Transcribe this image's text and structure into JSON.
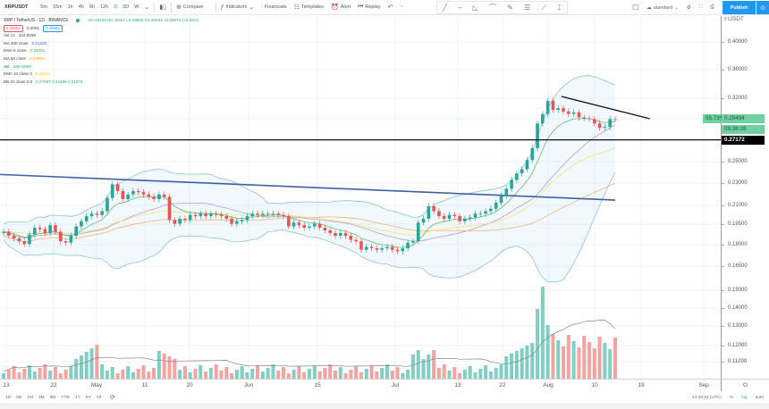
{
  "toolbar": {
    "symbol": "XRPUSDT",
    "timeframes": [
      "5m",
      "15m",
      "1h",
      "4h",
      "6h",
      "12h",
      "D",
      "3D",
      "W"
    ],
    "compare_label": "Compare",
    "indicators_label": "Indicators",
    "financials_label": "Financials",
    "templates_label": "Templates",
    "alert_label": "Alert",
    "replay_label": "Replay",
    "layout_label": "standard",
    "publish_label": "Publish"
  },
  "legend": {
    "title": "XRP / TetherUS · 1D · BINANCE",
    "ohlc": "O0.29420 H0.30347 L0.28910 C0.29494 +0.00074 (+0.25%)",
    "bid": "0.29493",
    "spread": "0.0001",
    "ask": "0.29494",
    "indicators": [
      {
        "name": "Vol 14",
        "value": "434.8298",
        "color": "#444444"
      },
      {
        "name": "MA 200 close",
        "value": "0.21420",
        "color": "#2962ff"
      },
      {
        "name": "EMA 8 close",
        "value": "0.29022",
        "color": "#4caf50"
      },
      {
        "name": "MA 50 close",
        "value": "0.22801",
        "color": "#ff9800"
      },
      {
        "name": "Vol",
        "value": "339.035M",
        "color": "#26a69a"
      },
      {
        "name": "EMA 34 close 0",
        "value": "0.25026",
        "color": "#f5d000"
      },
      {
        "name": "BB 20 close 2.0",
        "value": "0.27697  0.32458  0.21975",
        "color": "#26a69a"
      }
    ]
  },
  "price_axis": {
    "unit": "USDT",
    "ticks": [
      "0.40000",
      "0.36000",
      "0.32000",
      "0.25000",
      "0.23000",
      "0.21000",
      "0.19500",
      "0.18000",
      "0.16500",
      "0.15000",
      "0.14000",
      "0.13000",
      "0.12000",
      "0.11200"
    ],
    "current_price": "0.29494",
    "countdown": "09:36:28",
    "change_pct": "55.73%",
    "horizontal_line": "0.27172"
  },
  "time_axis": {
    "labels": [
      "13",
      "22",
      "May",
      "11",
      "20",
      "Jun",
      "15",
      "Jul",
      "13",
      "22",
      "Aug",
      "10",
      "19",
      "Sep"
    ],
    "corner": "O"
  },
  "bottombar": {
    "ranges": [
      "1D",
      "5D",
      "1M",
      "3M",
      "6M",
      "YTD",
      "1Y",
      "5Y",
      "All"
    ],
    "clock": "14:23:31 (UTC)",
    "pct": "%",
    "log": "log",
    "auto": "auto"
  },
  "colors": {
    "up": "#26a69a",
    "down": "#ef5350",
    "vol_up": "#7fcfc5",
    "vol_down": "#f4a3a0",
    "ma200": "#3f5fa8",
    "accent": "#2196f3"
  },
  "chart_data": {
    "type": "candlestick",
    "title": "XRP / TetherUS · 1D · BINANCE",
    "xlabel": "",
    "ylabel": "USDT",
    "scale": "log",
    "ylim": [
      0.112,
      0.42
    ],
    "x_start": "Apr 13",
    "x_end": "Aug 13",
    "candles_close": [
      0.189,
      0.186,
      0.184,
      0.182,
      0.18,
      0.187,
      0.192,
      0.191,
      0.188,
      0.194,
      0.189,
      0.182,
      0.181,
      0.186,
      0.193,
      0.197,
      0.201,
      0.203,
      0.202,
      0.205,
      0.216,
      0.228,
      0.222,
      0.215,
      0.219,
      0.222,
      0.221,
      0.219,
      0.217,
      0.215,
      0.219,
      0.217,
      0.198,
      0.195,
      0.199,
      0.198,
      0.202,
      0.201,
      0.203,
      0.201,
      0.203,
      0.202,
      0.201,
      0.199,
      0.195,
      0.197,
      0.198,
      0.201,
      0.203,
      0.202,
      0.203,
      0.203,
      0.203,
      0.202,
      0.201,
      0.193,
      0.196,
      0.194,
      0.192,
      0.193,
      0.195,
      0.192,
      0.19,
      0.188,
      0.186,
      0.188,
      0.186,
      0.183,
      0.182,
      0.176,
      0.178,
      0.177,
      0.176,
      0.177,
      0.178,
      0.176,
      0.175,
      0.177,
      0.181,
      0.182,
      0.196,
      0.199,
      0.209,
      0.205,
      0.201,
      0.199,
      0.202,
      0.201,
      0.197,
      0.199,
      0.2,
      0.203,
      0.203,
      0.205,
      0.207,
      0.212,
      0.218,
      0.224,
      0.232,
      0.238,
      0.242,
      0.251,
      0.263,
      0.29,
      0.301,
      0.317,
      0.306,
      0.308,
      0.304,
      0.301,
      0.303,
      0.297,
      0.296,
      0.295,
      0.29,
      0.285,
      0.286,
      0.295,
      0.29494
    ],
    "annotations": [
      {
        "type": "trendline",
        "label": "descending resistance",
        "from": [
          "Aug 2",
          0.325
        ],
        "to": [
          "Aug 21",
          0.302
        ]
      },
      {
        "type": "hline",
        "value": 0.27172
      },
      {
        "type": "ma",
        "name": "MA 200",
        "from": 0.237,
        "to": 0.2142
      }
    ],
    "volume_peak_date": "Aug 2",
    "legend_position": "top-left",
    "grid": true
  }
}
